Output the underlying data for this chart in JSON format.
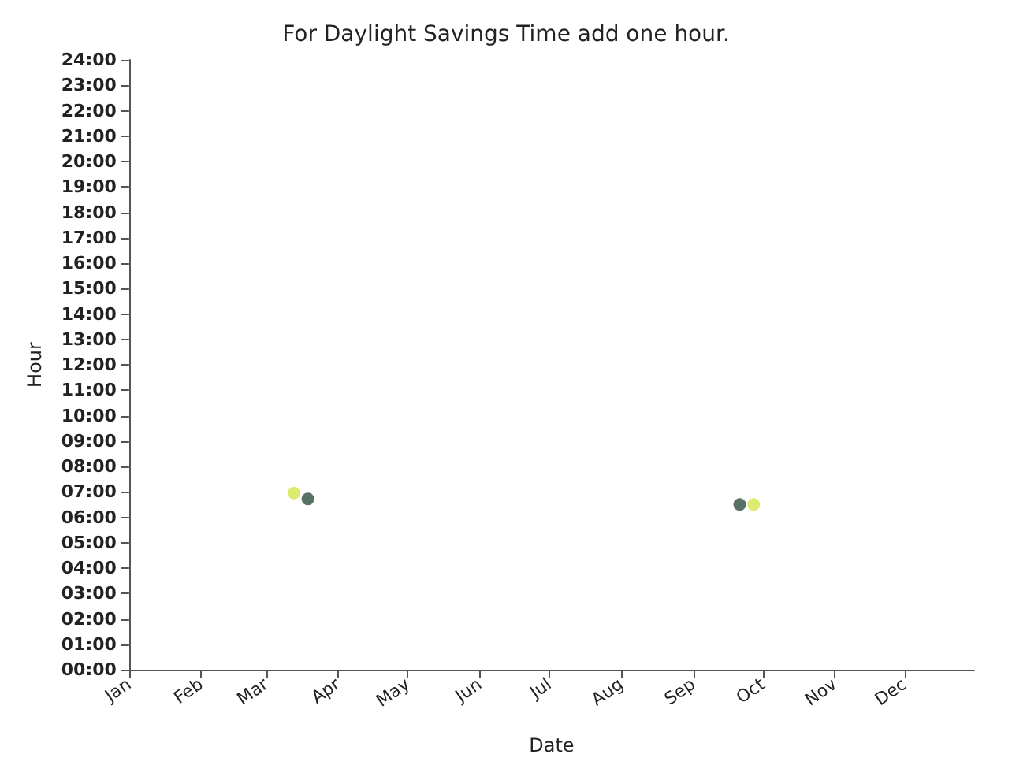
{
  "chart_data": {
    "type": "scatter",
    "title": "For Daylight Savings Time add one hour.",
    "xlabel": "Date",
    "ylabel": "Hour",
    "series": [
      {
        "color": "#d4e64c",
        "x": [
          "--03-13",
          "--09-27"
        ],
        "values": [
          6.95,
          6.5
        ]
      },
      {
        "color": "#2e5040",
        "x": [
          "--03-19",
          "--09-21"
        ],
        "values": [
          6.72,
          6.5
        ]
      }
    ],
    "xlim": [
      "--01-01",
      "--12-31"
    ],
    "xticks": [
      {
        "value": "--01-01",
        "label": "Jan"
      },
      {
        "value": "--02-01",
        "label": "Feb"
      },
      {
        "value": "--03-01",
        "label": "Mar"
      },
      {
        "value": "--04-01",
        "label": "Apr"
      },
      {
        "value": "--05-01",
        "label": "May"
      },
      {
        "value": "--06-01",
        "label": "Jun"
      },
      {
        "value": "--07-01",
        "label": "Jul"
      },
      {
        "value": "--08-01",
        "label": "Aug"
      },
      {
        "value": "--09-01",
        "label": "Sep"
      },
      {
        "value": "--10-01",
        "label": "Oct"
      },
      {
        "value": "--11-01",
        "label": "Nov"
      },
      {
        "value": "--12-01",
        "label": "Dec"
      }
    ],
    "ylim": [
      0,
      24
    ],
    "yticks": [
      {
        "value": 0,
        "label": "00:00"
      },
      {
        "value": 1,
        "label": "01:00"
      },
      {
        "value": 2,
        "label": "02:00"
      },
      {
        "value": 3,
        "label": "03:00"
      },
      {
        "value": 4,
        "label": "04:00"
      },
      {
        "value": 5,
        "label": "05:00"
      },
      {
        "value": 6,
        "label": "06:00"
      },
      {
        "value": 7,
        "label": "07:00"
      },
      {
        "value": 8,
        "label": "08:00"
      },
      {
        "value": 9,
        "label": "09:00"
      },
      {
        "value": 10,
        "label": "10:00"
      },
      {
        "value": 11,
        "label": "11:00"
      },
      {
        "value": 12,
        "label": "12:00"
      },
      {
        "value": 13,
        "label": "13:00"
      },
      {
        "value": 14,
        "label": "14:00"
      },
      {
        "value": 15,
        "label": "15:00"
      },
      {
        "value": 16,
        "label": "16:00"
      },
      {
        "value": 17,
        "label": "17:00"
      },
      {
        "value": 18,
        "label": "18:00"
      },
      {
        "value": 19,
        "label": "19:00"
      },
      {
        "value": 20,
        "label": "20:00"
      },
      {
        "value": 21,
        "label": "21:00"
      },
      {
        "value": 22,
        "label": "22:00"
      },
      {
        "value": 23,
        "label": "23:00"
      },
      {
        "value": 24,
        "label": "24:00"
      }
    ],
    "marker": "circle",
    "grid": false
  }
}
